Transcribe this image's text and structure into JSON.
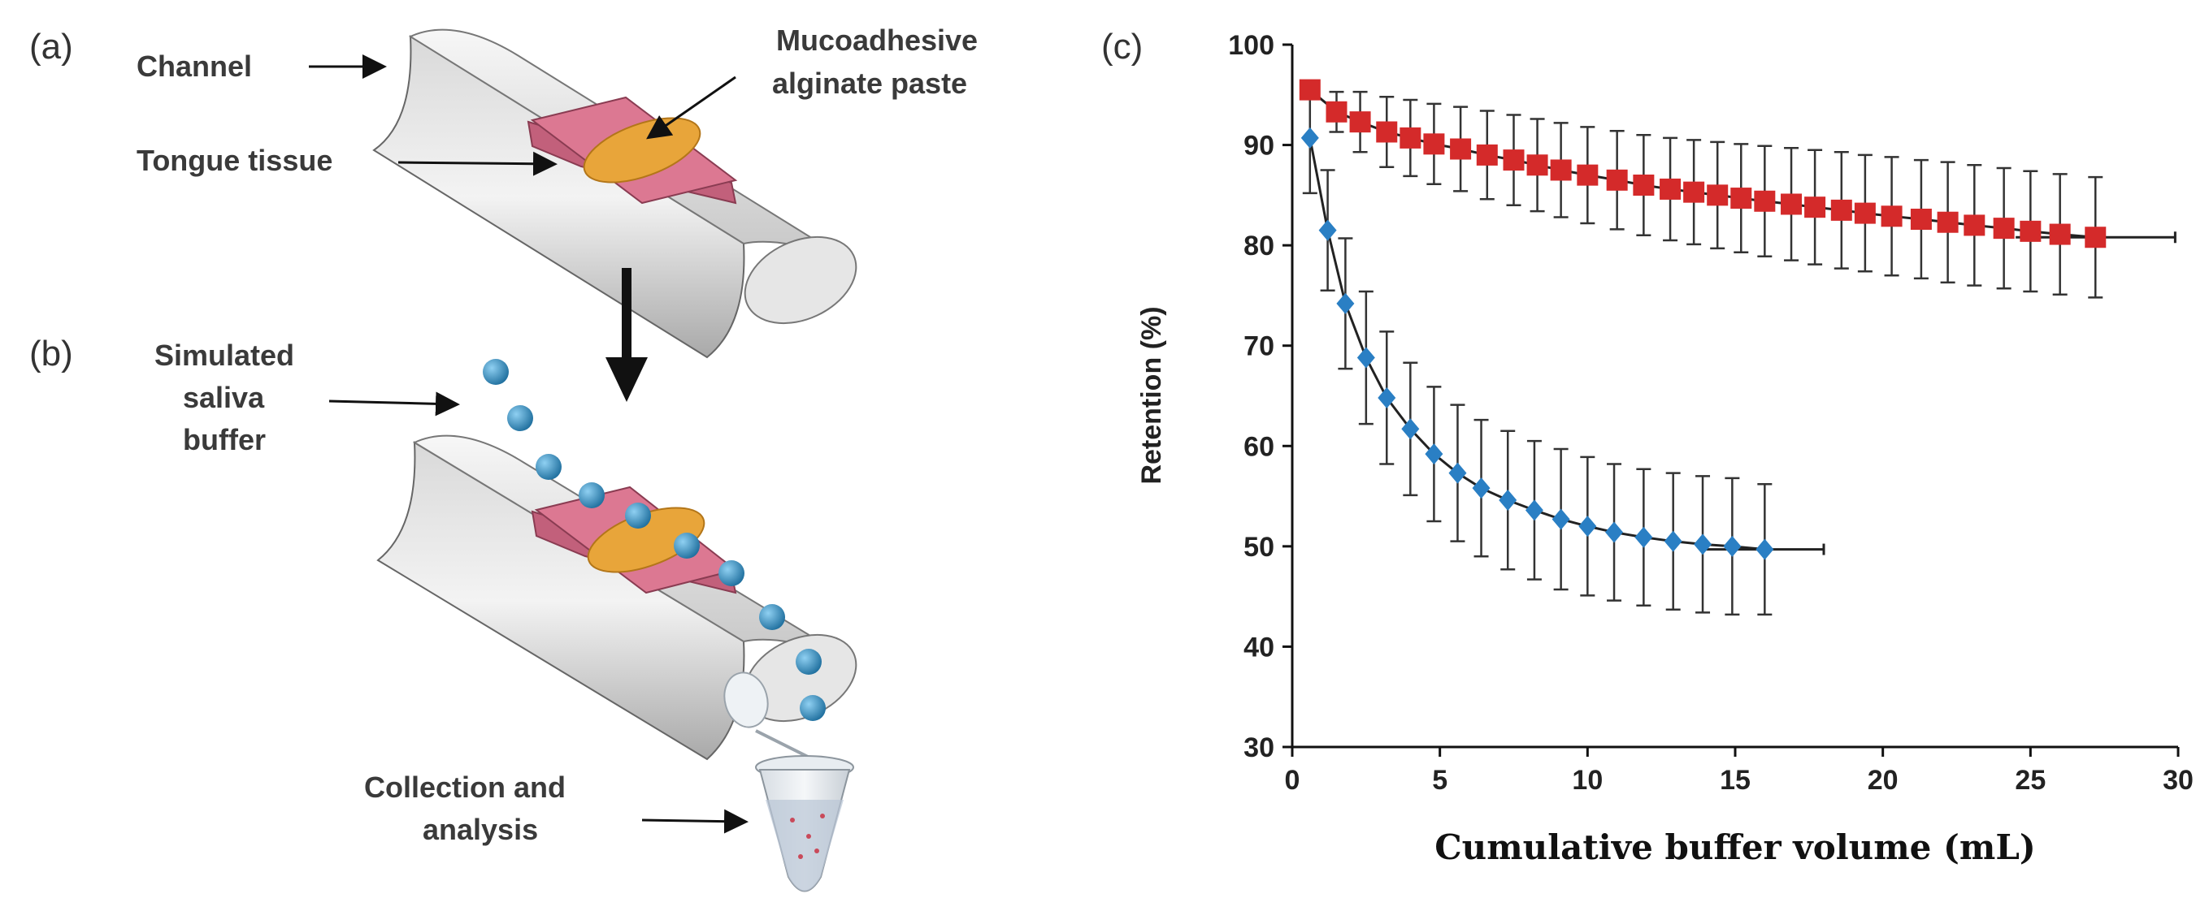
{
  "panels": {
    "a": "(a)",
    "b": "(b)",
    "c": "(c)"
  },
  "diagram": {
    "channel_label": "Channel",
    "paste_label_line1": "Mucoadhesive",
    "paste_label_line2": "alginate paste",
    "tissue_label": "Tongue tissue",
    "saliva_line1": "Simulated",
    "saliva_line2": "saliva",
    "saliva_line3": "buffer",
    "collection_line1": "Collection and",
    "collection_line2": "analysis"
  },
  "colors": {
    "series_red": "#d42a2a",
    "series_blue": "#2a7fc4",
    "paste_orange": "#e8a53a",
    "tissue_pink": "#d9708c",
    "droplet_blue": "#2f7fb3"
  },
  "chart_data": {
    "type": "scatter",
    "title": "",
    "xlabel": "Cumulative buffer volume (mL)",
    "ylabel": "Retention (%)",
    "xlim": [
      0,
      30
    ],
    "ylim": [
      30,
      100
    ],
    "xticks": [
      "0",
      "5",
      "10",
      "15",
      "20",
      "25",
      "30"
    ],
    "yticks": [
      "30",
      "40",
      "50",
      "60",
      "70",
      "80",
      "90",
      "100"
    ],
    "series": [
      {
        "name": "red",
        "color": "#d42a2a",
        "marker": "square",
        "x": [
          0.6,
          1.5,
          2.3,
          3.2,
          4.0,
          4.8,
          5.7,
          6.6,
          7.5,
          8.3,
          9.1,
          10.0,
          11.0,
          11.9,
          12.8,
          13.6,
          14.4,
          15.2,
          16.0,
          16.9,
          17.7,
          18.6,
          19.4,
          20.3,
          21.3,
          22.2,
          23.1,
          24.1,
          25.0,
          26.0,
          27.2
        ],
        "y": [
          95.5,
          93.3,
          92.3,
          91.3,
          90.7,
          90.1,
          89.6,
          89.0,
          88.5,
          88.0,
          87.5,
          87.0,
          86.5,
          86.0,
          85.6,
          85.3,
          85.0,
          84.7,
          84.4,
          84.1,
          83.8,
          83.5,
          83.2,
          82.9,
          82.6,
          82.3,
          82.0,
          81.7,
          81.4,
          81.1,
          80.8
        ],
        "yerr": [
          0.8,
          2.0,
          3.0,
          3.5,
          3.8,
          4.0,
          4.2,
          4.4,
          4.5,
          4.6,
          4.7,
          4.8,
          4.9,
          5.0,
          5.1,
          5.2,
          5.3,
          5.4,
          5.5,
          5.6,
          5.7,
          5.8,
          5.8,
          5.9,
          5.9,
          6.0,
          6.0,
          6.0,
          6.0,
          6.0,
          6.0
        ]
      },
      {
        "name": "blue",
        "color": "#2a7fc4",
        "marker": "diamond",
        "x": [
          0.6,
          1.2,
          1.8,
          2.5,
          3.2,
          4.0,
          4.8,
          5.6,
          6.4,
          7.3,
          8.2,
          9.1,
          10.0,
          10.9,
          11.9,
          12.9,
          13.9,
          14.9,
          16.0
        ],
        "y": [
          90.7,
          81.5,
          74.2,
          68.8,
          64.8,
          61.7,
          59.2,
          57.3,
          55.8,
          54.6,
          53.6,
          52.7,
          52.0,
          51.4,
          50.9,
          50.5,
          50.2,
          50.0,
          49.7
        ],
        "yerr": [
          5.5,
          6.0,
          6.5,
          6.6,
          6.6,
          6.6,
          6.7,
          6.8,
          6.8,
          6.9,
          6.9,
          7.0,
          6.9,
          6.8,
          6.8,
          6.8,
          6.8,
          6.8,
          6.5
        ],
        "xerr_last": 2.0
      }
    ],
    "red_xerr_last": 2.7
  }
}
